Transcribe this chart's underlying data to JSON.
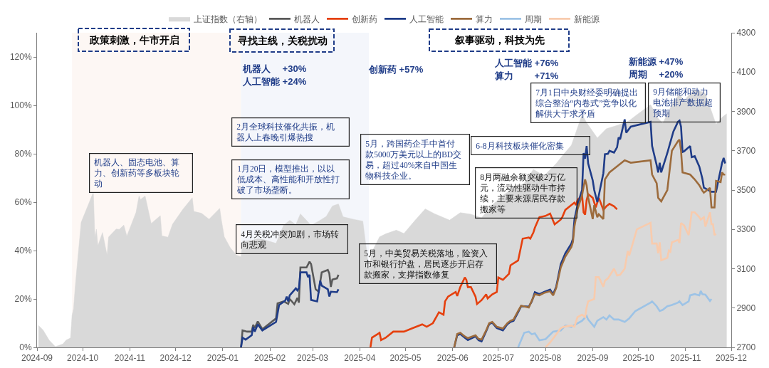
{
  "chart_data": {
    "type": "line",
    "legend": "top",
    "xlim": [
      "2024-09-01",
      "2025-12-01"
    ],
    "xticks": [
      "2024-09",
      "2024-10",
      "2024-11",
      "2024-12",
      "2025-01",
      "2025-02",
      "2025-03",
      "2025-04",
      "2025-05",
      "2025-06",
      "2025-07",
      "2025-08",
      "2025-09",
      "2025-10",
      "2025-11",
      "2025-12"
    ],
    "ylim": [
      0,
      130
    ],
    "yticks": [
      {
        "value": 0,
        "label": "0%"
      },
      {
        "value": 20,
        "label": "20%"
      },
      {
        "value": 40,
        "label": "40%"
      },
      {
        "value": 60,
        "label": "60%"
      },
      {
        "value": 80,
        "label": "80%"
      },
      {
        "value": 100,
        "label": "100%"
      },
      {
        "value": 120,
        "label": "120%"
      }
    ],
    "y2lim": [
      2700,
      4300
    ],
    "y2ticks": [
      2700,
      2900,
      3100,
      3300,
      3500,
      3700,
      3900,
      4100,
      4300
    ],
    "bands": [
      {
        "axis": "x",
        "from": "2024-09-24",
        "to": "2025-01-13",
        "color": "#fdf7f4"
      },
      {
        "axis": "x",
        "from": "2025-01-13",
        "to": "2025-04-07",
        "color": "#f4f6fb"
      }
    ],
    "series": [
      {
        "name": "上证指数（右轴）",
        "type": "area",
        "axis": "y2",
        "color": "#d9d9d9",
        "x": [
          "2024-09-02",
          "2024-09-05",
          "2024-09-09",
          "2024-09-13",
          "2024-09-18",
          "2024-09-20",
          "2024-09-23",
          "2024-09-24",
          "2024-09-25",
          "2024-09-26",
          "2024-09-27",
          "2024-09-30",
          "2024-10-08",
          "2024-10-09",
          "2024-10-10",
          "2024-10-11",
          "2024-10-14",
          "2024-10-17",
          "2024-10-18",
          "2024-10-23",
          "2024-10-25",
          "2024-10-28",
          "2024-10-30",
          "2024-11-05",
          "2024-11-07",
          "2024-11-08",
          "2024-11-11",
          "2024-11-15",
          "2024-11-21",
          "2024-11-22",
          "2024-11-26",
          "2024-11-29",
          "2024-12-06",
          "2024-12-12",
          "2024-12-13",
          "2024-12-18",
          "2024-12-23",
          "2024-12-30",
          "2024-12-31",
          "2025-01-02",
          "2025-01-06",
          "2025-01-10",
          "2025-01-13",
          "2025-01-14",
          "2025-01-20",
          "2025-01-24",
          "2025-01-27",
          "2025-02-05",
          "2025-02-10",
          "2025-02-14",
          "2025-02-18",
          "2025-02-21",
          "2025-02-25",
          "2025-02-28",
          "2025-03-05",
          "2025-03-10",
          "2025-03-14",
          "2025-03-18",
          "2025-03-21",
          "2025-03-28",
          "2025-04-03",
          "2025-04-07",
          "2025-04-08",
          "2025-04-09",
          "2025-04-14",
          "2025-04-18",
          "2025-04-25",
          "2025-04-30",
          "2025-05-07",
          "2025-05-14",
          "2025-05-20",
          "2025-05-30",
          "2025-06-06",
          "2025-06-13",
          "2025-06-20",
          "2025-06-27",
          "2025-07-04",
          "2025-07-11",
          "2025-07-18",
          "2025-07-24",
          "2025-07-31",
          "2025-08-08",
          "2025-08-13",
          "2025-08-18",
          "2025-08-25",
          "2025-08-28",
          "2025-09-04",
          "2025-09-10",
          "2025-09-18",
          "2025-09-25",
          "2025-09-30",
          "2025-10-09",
          "2025-10-14",
          "2025-10-17",
          "2025-10-24",
          "2025-10-28",
          "2025-10-31",
          "2025-11-06",
          "2025-11-12",
          "2025-11-14",
          "2025-11-21",
          "2025-11-25",
          "2025-11-28"
        ],
        "values": [
          2811,
          2788,
          2736,
          2704,
          2717,
          2736,
          2748,
          2863,
          2896,
          3000,
          3087,
          3336,
          3489,
          3258,
          3301,
          3217,
          3284,
          3169,
          3261,
          3302,
          3300,
          3322,
          3266,
          3386,
          3470,
          3452,
          3470,
          3330,
          3370,
          3267,
          3260,
          3326,
          3404,
          3461,
          3391,
          3382,
          3352,
          3407,
          3352,
          3262,
          3206,
          3169,
          3160,
          3240,
          3244,
          3252,
          3250,
          3229,
          3322,
          3346,
          3324,
          3379,
          3346,
          3321,
          3342,
          3366,
          3419,
          3429,
          3364,
          3351,
          3342,
          3096,
          3145,
          3186,
          3262,
          3277,
          3296,
          3279,
          3343,
          3404,
          3380,
          3347,
          3385,
          3377,
          3359,
          3424,
          3473,
          3510,
          3534,
          3605,
          3573,
          3635,
          3683,
          3728,
          3883,
          3843,
          3765,
          3812,
          3831,
          3853,
          3883,
          3934,
          3865,
          3839,
          3950,
          3988,
          3955,
          4008,
          4000,
          3990,
          3834,
          3870,
          3888
        ]
      },
      {
        "name": "机器人",
        "color": "#595959",
        "x": [
          "2025-01-13",
          "2025-01-14",
          "2025-01-17",
          "2025-01-20",
          "2025-01-21",
          "2025-01-22",
          "2025-01-24",
          "2025-01-27",
          "2025-02-05",
          "2025-02-06",
          "2025-02-10",
          "2025-02-13",
          "2025-02-14",
          "2025-02-17",
          "2025-02-19",
          "2025-02-20",
          "2025-02-21",
          "2025-02-25",
          "2025-02-27",
          "2025-02-28",
          "2025-03-03",
          "2025-03-05",
          "2025-03-07",
          "2025-03-11",
          "2025-03-12",
          "2025-03-13",
          "2025-03-14",
          "2025-03-17",
          "2025-03-18"
        ],
        "values": [
          0,
          7,
          6.5,
          6.5,
          9.3,
          8,
          10.7,
          7.5,
          12,
          18.2,
          19,
          18,
          20,
          17.8,
          20.4,
          18.5,
          33,
          33,
          35.4,
          34.4,
          24,
          23,
          31,
          32,
          30.5,
          25,
          28,
          28.5,
          30
        ]
      },
      {
        "name": "创新药",
        "color": "#e5400e",
        "x": [
          "2025-04-08",
          "2025-04-09",
          "2025-04-14",
          "2025-04-15",
          "2025-04-18",
          "2025-04-23",
          "2025-04-30",
          "2025-05-06",
          "2025-05-12",
          "2025-05-15",
          "2025-05-19",
          "2025-05-23",
          "2025-05-26",
          "2025-05-27",
          "2025-05-29",
          "2025-06-03",
          "2025-06-04",
          "2025-06-06",
          "2025-06-09",
          "2025-06-10",
          "2025-06-11",
          "2025-06-13",
          "2025-06-16",
          "2025-06-17",
          "2025-06-20",
          "2025-06-23",
          "2025-06-24",
          "2025-06-27",
          "2025-06-30",
          "2025-07-01",
          "2025-07-04",
          "2025-07-08",
          "2025-07-09",
          "2025-07-14",
          "2025-07-17",
          "2025-07-21",
          "2025-07-22",
          "2025-07-24",
          "2025-07-25",
          "2025-07-28",
          "2025-08-01",
          "2025-08-04",
          "2025-08-07",
          "2025-08-11",
          "2025-08-12",
          "2025-08-14",
          "2025-08-18",
          "2025-08-20",
          "2025-08-21",
          "2025-08-22",
          "2025-08-25",
          "2025-08-26",
          "2025-08-27",
          "2025-08-28",
          "2025-08-29",
          "2025-09-01",
          "2025-09-03",
          "2025-09-05",
          "2025-09-08",
          "2025-09-10",
          "2025-09-12",
          "2025-09-15",
          "2025-09-17"
        ],
        "values": [
          0,
          4,
          6,
          3,
          4,
          6.5,
          6.5,
          8,
          9.5,
          8.5,
          10,
          14.5,
          13.5,
          19,
          21,
          22.9,
          21.2,
          24.9,
          28.9,
          27.9,
          24.9,
          24.9,
          21,
          17.9,
          19.5,
          21.9,
          20.2,
          21.9,
          22.9,
          28.9,
          27.9,
          30.4,
          33.9,
          35.9,
          44.9,
          45.4,
          44.9,
          47.4,
          49.4,
          53.8,
          54.3,
          55.3,
          50.8,
          52.8,
          53.8,
          56.8,
          58.8,
          59.8,
          58.8,
          60.8,
          62.8,
          55.8,
          54.8,
          60.8,
          63.3,
          61.8,
          57.8,
          61.8,
          56.8,
          58.3,
          59.3,
          58.3,
          57
        ]
      },
      {
        "name": "人工智能",
        "color": "#1f3c88",
        "x": [
          "2025-01-13",
          "2025-01-14",
          "2025-01-16",
          "2025-01-20",
          "2025-01-21",
          "2025-01-22",
          "2025-01-24",
          "2025-01-27",
          "2025-02-05",
          "2025-02-07",
          "2025-02-11",
          "2025-02-12",
          "2025-02-13",
          "2025-02-14",
          "2025-02-18",
          "2025-02-19",
          "2025-02-20",
          "2025-02-21",
          "2025-02-25",
          "2025-02-26",
          "2025-02-27",
          "2025-02-28",
          "2025-03-04",
          "2025-03-05",
          "2025-03-06",
          "2025-03-07",
          "2025-03-11",
          "2025-03-12",
          "2025-03-13",
          "2025-03-17",
          "2025-03-18",
          "2025-05-01",
          "2025-06-02",
          "2025-06-04",
          "2025-06-06",
          "2025-06-09",
          "2025-06-11",
          "2025-06-16",
          "2025-06-18",
          "2025-06-20",
          "2025-06-23",
          "2025-06-25",
          "2025-06-27",
          "2025-06-30",
          "2025-07-04",
          "2025-07-07",
          "2025-07-09",
          "2025-07-11",
          "2025-07-14",
          "2025-07-16",
          "2025-07-21",
          "2025-07-23",
          "2025-07-25",
          "2025-07-28",
          "2025-07-31",
          "2025-08-04",
          "2025-08-06",
          "2025-08-08",
          "2025-08-11",
          "2025-08-14",
          "2025-08-18",
          "2025-08-19",
          "2025-08-20",
          "2025-08-22",
          "2025-08-25",
          "2025-08-26",
          "2025-08-27",
          "2025-08-28",
          "2025-08-29",
          "2025-09-01",
          "2025-09-02",
          "2025-09-04",
          "2025-09-05",
          "2025-09-08",
          "2025-09-09",
          "2025-09-11",
          "2025-09-12",
          "2025-09-15",
          "2025-09-17",
          "2025-09-18",
          "2025-09-19",
          "2025-09-22",
          "2025-09-23",
          "2025-09-26",
          "2025-10-09",
          "2025-10-10",
          "2025-10-13",
          "2025-10-14",
          "2025-10-15",
          "2025-10-16",
          "2025-10-20",
          "2025-10-24",
          "2025-10-27",
          "2025-10-28",
          "2025-10-29",
          "2025-10-30",
          "2025-10-31",
          "2025-11-04",
          "2025-11-05",
          "2025-11-07",
          "2025-11-10",
          "2025-11-12",
          "2025-11-13",
          "2025-11-18",
          "2025-11-21",
          "2025-11-24",
          "2025-11-25",
          "2025-11-26",
          "2025-11-27"
        ],
        "values": [
          0,
          4,
          3.2,
          5,
          8.4,
          6.5,
          9.5,
          7,
          10.5,
          17.5,
          19.3,
          21,
          19,
          21.5,
          24.4,
          23.5,
          24.4,
          31,
          31,
          29,
          30,
          19.6,
          19,
          23,
          27.5,
          25.5,
          24,
          21,
          23,
          22.8,
          24,
          null,
          0,
          5,
          5.5,
          4,
          3,
          4.5,
          3,
          2.5,
          6.6,
          9.6,
          10.2,
          8,
          7,
          9.6,
          10.5,
          11,
          14.5,
          17,
          16.8,
          19,
          22.8,
          22,
          22.9,
          23.9,
          22,
          25,
          34.4,
          38.9,
          42.9,
          44.9,
          52.9,
          58.8,
          65,
          80.3,
          78,
          83.2,
          76,
          69,
          65,
          60,
          62.8,
          72,
          79.8,
          80,
          81.2,
          80.5,
          82.7,
          86.7,
          86,
          94.2,
          88.7,
          91.2,
          93.2,
          83.2,
          75.3,
          72.3,
          76.3,
          72.3,
          80.3,
          89.2,
          93.2,
          93.7,
          91.2,
          80.7,
          81,
          83.2,
          78.6,
          79,
          74.7,
          69.8,
          66,
          64.3,
          64.3,
          73.3,
          76.3,
          78.3,
          76
        ]
      },
      {
        "name": "算力",
        "color": "#9c6b3c",
        "x": [
          "2025-06-02",
          "2025-06-04",
          "2025-06-06",
          "2025-06-09",
          "2025-06-11",
          "2025-06-16",
          "2025-06-18",
          "2025-06-20",
          "2025-06-23",
          "2025-06-25",
          "2025-06-27",
          "2025-06-30",
          "2025-07-04",
          "2025-07-07",
          "2025-07-09",
          "2025-07-11",
          "2025-07-14",
          "2025-07-16",
          "2025-07-21",
          "2025-07-23",
          "2025-07-25",
          "2025-07-28",
          "2025-07-31",
          "2025-08-04",
          "2025-08-06",
          "2025-08-08",
          "2025-08-11",
          "2025-08-14",
          "2025-08-18",
          "2025-08-19",
          "2025-08-20",
          "2025-08-22",
          "2025-08-25",
          "2025-08-26",
          "2025-08-27",
          "2025-08-28",
          "2025-08-29",
          "2025-09-01",
          "2025-09-02",
          "2025-09-04",
          "2025-09-05",
          "2025-09-08",
          "2025-09-09",
          "2025-09-12",
          "2025-09-18",
          "2025-09-22",
          "2025-09-26",
          "2025-10-09",
          "2025-10-10",
          "2025-10-13",
          "2025-10-14",
          "2025-10-16",
          "2025-10-20",
          "2025-10-23",
          "2025-10-27",
          "2025-10-28",
          "2025-10-29",
          "2025-10-30",
          "2025-11-04",
          "2025-11-07",
          "2025-11-10",
          "2025-11-12",
          "2025-11-13",
          "2025-11-17",
          "2025-11-18",
          "2025-11-20",
          "2025-11-21",
          "2025-11-24",
          "2025-11-25",
          "2025-11-26",
          "2025-11-27"
        ],
        "values": [
          0,
          5.5,
          6,
          4.5,
          3.8,
          5,
          3.5,
          3.2,
          7,
          10,
          10.5,
          8.5,
          7.8,
          10,
          11,
          11.5,
          15,
          17.2,
          16.5,
          19.3,
          22,
          21.5,
          22.5,
          23.2,
          21.5,
          24.5,
          33,
          37.5,
          41.5,
          43.5,
          50,
          57,
          62.8,
          66.3,
          69.4,
          67,
          62,
          53,
          58.8,
          53.8,
          55,
          53,
          69.4,
          72.3,
          75.3,
          77.3,
          76.3,
          77.3,
          71.4,
          67.8,
          61.8,
          60.3,
          65,
          81.2,
          85.2,
          85.8,
          81.2,
          72.3,
          71.4,
          69.4,
          67,
          64.8,
          63.9,
          65.9,
          57.8,
          57.8,
          68.8,
          68.3,
          72.3,
          71.4,
          71.4
        ]
      },
      {
        "name": "周期",
        "color": "#9dc3e6",
        "x": [
          "2025-07-14",
          "2025-07-18",
          "2025-07-21",
          "2025-07-23",
          "2025-07-25",
          "2025-07-28",
          "2025-08-01",
          "2025-08-06",
          "2025-08-11",
          "2025-08-14",
          "2025-08-18",
          "2025-08-25",
          "2025-08-28",
          "2025-08-29",
          "2025-09-02",
          "2025-09-04",
          "2025-09-08",
          "2025-09-10",
          "2025-09-12",
          "2025-09-15",
          "2025-09-18",
          "2025-09-22",
          "2025-09-25",
          "2025-09-29",
          "2025-10-09",
          "2025-10-10",
          "2025-10-13",
          "2025-10-15",
          "2025-10-17",
          "2025-10-20",
          "2025-10-23",
          "2025-10-27",
          "2025-10-28",
          "2025-10-30",
          "2025-11-03",
          "2025-11-04",
          "2025-11-07",
          "2025-11-10",
          "2025-11-11",
          "2025-11-12",
          "2025-11-14",
          "2025-11-17",
          "2025-11-18"
        ],
        "values": [
          0,
          6,
          6.5,
          5.4,
          5.8,
          2.9,
          3.4,
          6.5,
          7,
          9,
          8.5,
          11,
          13,
          11.5,
          8.5,
          11,
          12.5,
          11.5,
          13.2,
          11.5,
          11.5,
          10.5,
          12,
          15,
          18.5,
          19,
          17,
          15,
          15.5,
          17,
          17.5,
          18.5,
          19,
          17.5,
          19,
          21.5,
          22,
          21.5,
          23.3,
          22,
          21.8,
          19.2,
          20
        ]
      },
      {
        "name": "新能源",
        "color": "#f8cbad",
        "x": [
          "2025-08-01",
          "2025-08-04",
          "2025-08-07",
          "2025-08-11",
          "2025-08-13",
          "2025-08-18",
          "2025-08-20",
          "2025-08-22",
          "2025-08-25",
          "2025-08-27",
          "2025-08-28",
          "2025-08-29",
          "2025-09-02",
          "2025-09-03",
          "2025-09-05",
          "2025-09-08",
          "2025-09-09",
          "2025-09-11",
          "2025-09-15",
          "2025-09-17",
          "2025-09-19",
          "2025-09-22",
          "2025-09-24",
          "2025-09-25",
          "2025-09-30",
          "2025-10-09",
          "2025-10-10",
          "2025-10-13",
          "2025-10-14",
          "2025-10-15",
          "2025-10-16",
          "2025-10-20",
          "2025-10-21",
          "2025-10-22",
          "2025-10-23",
          "2025-10-27",
          "2025-10-28",
          "2025-10-29",
          "2025-10-30",
          "2025-10-31",
          "2025-11-03",
          "2025-11-04",
          "2025-11-05",
          "2025-11-07",
          "2025-11-10",
          "2025-11-11",
          "2025-11-13",
          "2025-11-14",
          "2025-11-17",
          "2025-11-18",
          "2025-11-19",
          "2025-11-20",
          "2025-11-21"
        ],
        "values": [
          0,
          2,
          4.5,
          7.9,
          8.5,
          9,
          8.5,
          12.5,
          13.5,
          12.5,
          16.5,
          19,
          20,
          29,
          29,
          25,
          27.5,
          28.5,
          32.5,
          29.7,
          30,
          32.5,
          39.8,
          38,
          48.8,
          51.5,
          42.9,
          42.9,
          38.9,
          43.4,
          36,
          37,
          40,
          39.5,
          43.4,
          44.4,
          43.1,
          51.4,
          50.9,
          50.4,
          46.4,
          50.9,
          55.8,
          55.8,
          53.8,
          52.8,
          53.8,
          49.9,
          55.8,
          50.9,
          50.9,
          46.4,
          46.9
        ]
      }
    ],
    "annotations": [
      "政策刺激，牛市开启",
      "寻找主线，关税扰动",
      "叙事驱动，科技为先",
      "机器人　 +30%",
      "人工智能 +24%",
      "创新药 +57%",
      "人工智能 +76%",
      "算力　　 +71%",
      "新能源 +47%",
      "周期　 +20%",
      "机器人、固态电池、算力、创新药等多板块轮动",
      "2月全球科技催化共振，机器人上春晚引爆热搜",
      "1月20日，模型推出，以以低成本、高性能和开放性打破了市场垄断。",
      "4月关税冲突加剧，市场转向悲观",
      "5月，跨国药企手中首付款5000万美元以上的BD交易，超过40%来自中国生物科技企业。",
      "5月，中美贸易关税落地，险资入市和银行护盘，居民逐步开启存款搬家，支撑指数修复",
      "6-8月科技板块催化密集",
      "8月两融余额突破2万亿元，流动性驱动牛市持续，主要来源居民存款搬家等",
      "7月1日中央财经委明确提出综合整治“内卷式”竞争以化解供大于求矛盾",
      "9月储能和动力电池排产数据超预期"
    ]
  }
}
